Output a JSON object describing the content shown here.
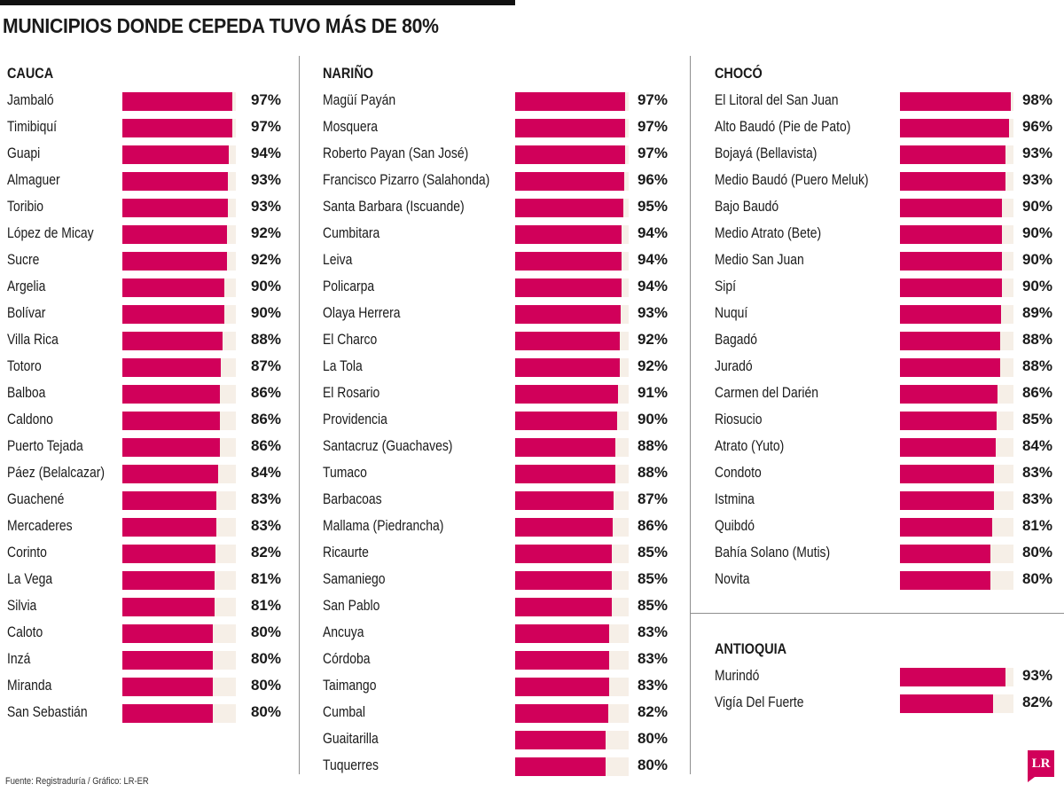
{
  "title": "MUNICIPIOS DONDE CEPEDA TUVO MÁS DE 80%",
  "source": "Fuente: Registraduría / Gráfico: LR-ER",
  "logo_text": "LR",
  "colors": {
    "bar": "#d1005a",
    "track": "#f6efe7",
    "accent": "#d1005a"
  },
  "chart_data": {
    "type": "bar",
    "orientation": "horizontal",
    "unit": "%",
    "xlim": [
      0,
      100
    ],
    "grid": false,
    "sections": [
      {
        "name": "CAUCA",
        "categories": [
          "Jambaló",
          "Timibiquí",
          "Guapi",
          "Almaguer",
          "Toribio",
          "López de Micay",
          "Sucre",
          "Argelia",
          "Bolívar",
          "Villa Rica",
          "Totoro",
          "Balboa",
          "Caldono",
          "Puerto Tejada",
          "Páez (Belalcazar)",
          "Guachené",
          "Mercaderes",
          "Corinto",
          "La Vega",
          "Silvia",
          "Caloto",
          "Inzá",
          "Miranda",
          "San Sebastián"
        ],
        "values": [
          97,
          97,
          94,
          93,
          93,
          92,
          92,
          90,
          90,
          88,
          87,
          86,
          86,
          86,
          84,
          83,
          83,
          82,
          81,
          81,
          80,
          80,
          80,
          80
        ],
        "labels": [
          "97%",
          "97%",
          "94%",
          "93%",
          "93%",
          "92%",
          "92%",
          "90%",
          "90%",
          "88%",
          "87%",
          "86%",
          "86%",
          "86%",
          "84%",
          "83%",
          "83%",
          "82%",
          "81%",
          "81%",
          "80%",
          "80%",
          "80%",
          "80%"
        ]
      },
      {
        "name": "NARIÑO",
        "categories": [
          "Magüí Payán",
          "Mosquera",
          "Roberto Payan (San José)",
          "Francisco Pizarro (Salahonda)",
          "Santa Barbara (Iscuande)",
          "Cumbitara",
          "Leiva",
          "Policarpa",
          "Olaya Herrera",
          "El Charco",
          "La Tola",
          "El Rosario",
          "Providencia",
          "Santacruz (Guachaves)",
          "Tumaco",
          "Barbacoas",
          "Mallama (Piedrancha)",
          "Ricaurte",
          "Samaniego",
          "San Pablo",
          "Ancuya",
          "Córdoba",
          "Taimango",
          "Cumbal",
          "Guaitarilla",
          "Tuquerres"
        ],
        "values": [
          97,
          97,
          97,
          96,
          95,
          94,
          94,
          94,
          93,
          92,
          92,
          91,
          90,
          88,
          88,
          87,
          86,
          85,
          85,
          85,
          83,
          83,
          83,
          82,
          80,
          80
        ],
        "labels": [
          "97%",
          "97%",
          "97%",
          "96%",
          "95%",
          "94%",
          "94%",
          "94%",
          "93%",
          "92%",
          "92%",
          "91%",
          "90%",
          "88%",
          "88%",
          "87%",
          "86%",
          "85%",
          "85%",
          "85%",
          "83%",
          "83%",
          "83%",
          "82%",
          "80%",
          "80%"
        ]
      },
      {
        "name": "CHOCÓ",
        "categories": [
          "El Litoral del San Juan",
          "Alto Baudó (Pie de Pato)",
          "Bojayá (Bellavista)",
          "Medio Baudó (Puero Meluk)",
          "Bajo Baudó",
          "Medio Atrato (Bete)",
          "Medio San Juan",
          "Sipí",
          "Nuquí",
          "Bagadó",
          "Juradó",
          "Carmen del Darién",
          "Riosucio",
          "Atrato (Yuto)",
          "Condoto",
          "Istmina",
          "Quibdó",
          "Bahía Solano (Mutis)",
          "Novita"
        ],
        "values": [
          98,
          96,
          93,
          93,
          90,
          90,
          90,
          90,
          89,
          88,
          88,
          86,
          85,
          84,
          83,
          83,
          81,
          80,
          80
        ],
        "labels": [
          "98%",
          "96%",
          "93%",
          "93%",
          "90%",
          "90%",
          "90%",
          "90%",
          "89%",
          "88%",
          "88%",
          "86%",
          "85%",
          "84%",
          "83%",
          "83%",
          "81%",
          "80%",
          "80%"
        ]
      },
      {
        "name": "ANTIOQUIA",
        "categories": [
          "Murindó",
          "Vigía Del Fuerte"
        ],
        "values": [
          93,
          82
        ],
        "labels": [
          "93%",
          "82%"
        ]
      }
    ]
  }
}
